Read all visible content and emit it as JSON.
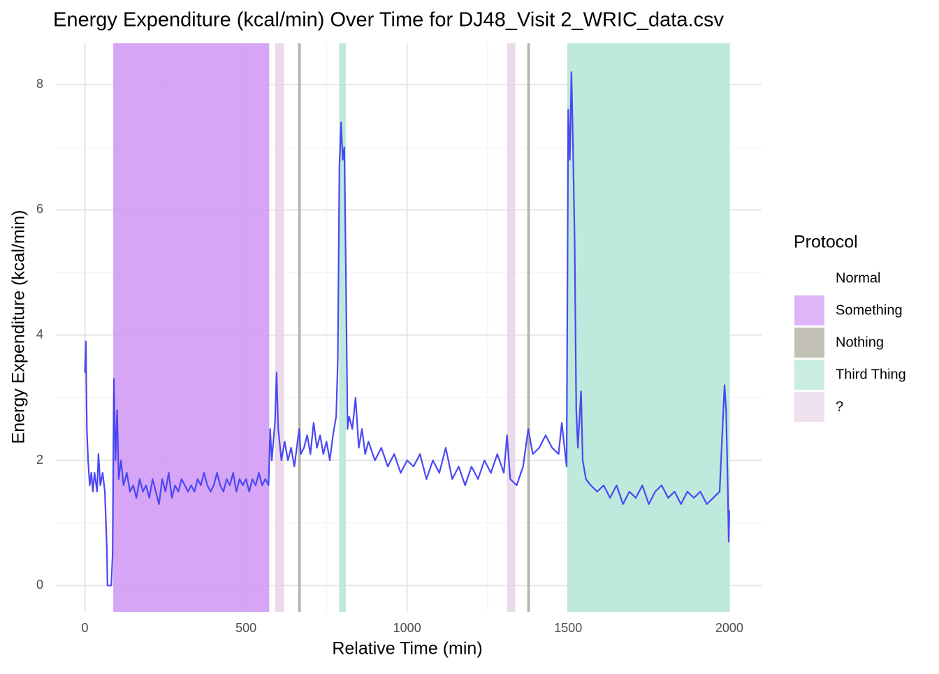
{
  "chart_data": {
    "type": "line",
    "title": "Energy Expenditure (kcal/min) Over Time for DJ48_Visit 2_WRIC_data.csv",
    "x_label": "Relative Time (min)",
    "y_label": "Energy Expenditure (kcal/min)",
    "xlim": [
      -90,
      2100
    ],
    "ylim": [
      -0.42,
      8.66
    ],
    "xticks": [
      0,
      500,
      1000,
      1500,
      2000
    ],
    "yticks": [
      0,
      2,
      4,
      6,
      8
    ],
    "x_minor_grid": [
      250,
      750,
      1250,
      1750
    ],
    "y_minor_grid": [
      1,
      3,
      5,
      7
    ],
    "grid": true,
    "legend_title": "Protocol",
    "protocols": [
      {
        "name": "Normal",
        "color": "#ffffff"
      },
      {
        "name": "Something",
        "color": "#cf95f5"
      },
      {
        "name": "Nothing",
        "color": "#a9a597"
      },
      {
        "name": "Third Thing",
        "color": "#b2e6d6"
      },
      {
        "name": "?",
        "color": "#e8d3e5"
      }
    ],
    "bands": [
      {
        "protocol": "Something",
        "start": 88,
        "end": 572
      },
      {
        "protocol": "?",
        "start": 590,
        "end": 618
      },
      {
        "protocol": "Nothing",
        "start": 662,
        "end": 670
      },
      {
        "protocol": "Third Thing",
        "start": 789,
        "end": 810
      },
      {
        "protocol": "?",
        "start": 1310,
        "end": 1336
      },
      {
        "protocol": "Nothing",
        "start": 1373,
        "end": 1381
      },
      {
        "protocol": "Third Thing",
        "start": 1497,
        "end": 2000
      }
    ],
    "x": [
      0,
      3,
      6,
      10,
      15,
      20,
      25,
      30,
      38,
      42,
      48,
      55,
      62,
      68,
      70,
      82,
      86,
      90,
      95,
      100,
      105,
      112,
      120,
      130,
      140,
      150,
      160,
      170,
      180,
      190,
      200,
      210,
      220,
      230,
      240,
      250,
      260,
      270,
      280,
      290,
      300,
      310,
      320,
      330,
      340,
      350,
      360,
      370,
      380,
      390,
      400,
      410,
      420,
      430,
      440,
      450,
      460,
      470,
      480,
      490,
      500,
      510,
      520,
      530,
      540,
      550,
      560,
      570,
      575,
      580,
      590,
      595,
      600,
      610,
      620,
      630,
      640,
      650,
      660,
      665,
      670,
      680,
      690,
      700,
      710,
      720,
      730,
      740,
      750,
      760,
      770,
      780,
      785,
      790,
      795,
      800,
      805,
      810,
      815,
      820,
      830,
      840,
      850,
      860,
      870,
      880,
      900,
      920,
      940,
      960,
      980,
      1000,
      1020,
      1040,
      1060,
      1080,
      1100,
      1120,
      1140,
      1160,
      1180,
      1200,
      1220,
      1240,
      1260,
      1280,
      1300,
      1310,
      1320,
      1340,
      1360,
      1376,
      1390,
      1410,
      1430,
      1450,
      1470,
      1480,
      1495,
      1500,
      1505,
      1510,
      1515,
      1520,
      1525,
      1530,
      1540,
      1545,
      1555,
      1570,
      1590,
      1610,
      1630,
      1650,
      1670,
      1690,
      1710,
      1730,
      1750,
      1770,
      1790,
      1810,
      1830,
      1850,
      1870,
      1890,
      1910,
      1930,
      1950,
      1970,
      1985,
      1990,
      1995,
      1998,
      2000
    ],
    "series": [
      {
        "color": "#4a48f2",
        "values": [
          3.4,
          3.9,
          2.5,
          2.0,
          1.6,
          1.8,
          1.5,
          1.8,
          1.5,
          2.1,
          1.6,
          1.8,
          1.5,
          0.6,
          0.0,
          0.0,
          0.5,
          3.3,
          2.0,
          2.8,
          1.7,
          2.0,
          1.6,
          1.8,
          1.5,
          1.6,
          1.4,
          1.7,
          1.5,
          1.6,
          1.4,
          1.7,
          1.5,
          1.3,
          1.7,
          1.5,
          1.8,
          1.4,
          1.6,
          1.5,
          1.7,
          1.6,
          1.5,
          1.6,
          1.5,
          1.7,
          1.6,
          1.8,
          1.6,
          1.5,
          1.6,
          1.8,
          1.6,
          1.5,
          1.7,
          1.6,
          1.8,
          1.5,
          1.7,
          1.6,
          1.7,
          1.5,
          1.7,
          1.6,
          1.8,
          1.6,
          1.7,
          1.6,
          2.5,
          2.0,
          2.6,
          3.4,
          2.5,
          2.0,
          2.3,
          2.0,
          2.2,
          1.9,
          2.3,
          2.5,
          2.1,
          2.2,
          2.4,
          2.1,
          2.6,
          2.2,
          2.4,
          2.1,
          2.3,
          2.0,
          2.4,
          2.7,
          3.6,
          6.7,
          7.4,
          6.8,
          7.0,
          5.0,
          2.5,
          2.7,
          2.5,
          3.0,
          2.2,
          2.5,
          2.1,
          2.3,
          2.0,
          2.2,
          1.9,
          2.1,
          1.8,
          2.0,
          1.9,
          2.1,
          1.7,
          2.0,
          1.8,
          2.2,
          1.7,
          1.9,
          1.6,
          1.9,
          1.7,
          2.0,
          1.8,
          2.1,
          1.8,
          2.4,
          1.7,
          1.6,
          1.9,
          2.5,
          2.1,
          2.2,
          2.4,
          2.2,
          2.1,
          2.6,
          1.9,
          7.6,
          6.8,
          8.2,
          7.0,
          5.5,
          2.8,
          2.2,
          3.1,
          2.0,
          1.7,
          1.6,
          1.5,
          1.6,
          1.4,
          1.6,
          1.3,
          1.5,
          1.4,
          1.6,
          1.3,
          1.5,
          1.6,
          1.4,
          1.5,
          1.3,
          1.5,
          1.4,
          1.5,
          1.3,
          1.4,
          1.5,
          3.2,
          2.8,
          1.6,
          0.7,
          1.2
        ]
      }
    ]
  }
}
